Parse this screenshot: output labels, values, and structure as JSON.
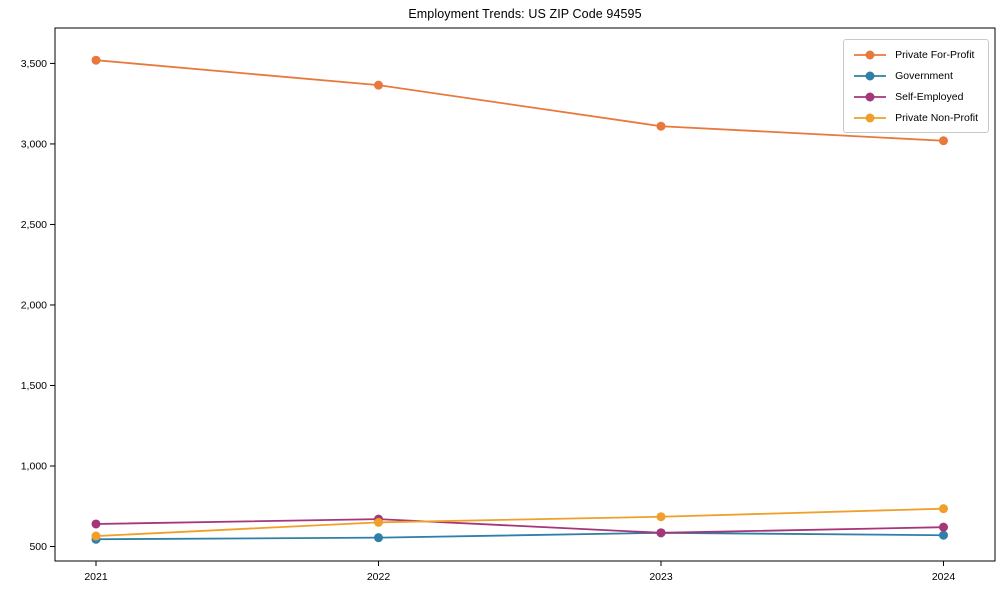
{
  "title": "Employment Trends: US ZIP Code 94595",
  "chart_data": {
    "type": "line",
    "title": "Employment Trends: US ZIP Code 94595",
    "xlabel": "",
    "ylabel": "",
    "x": [
      2021,
      2022,
      2023,
      2024
    ],
    "xtick_labels": [
      "2021",
      "2022",
      "2023",
      "2024"
    ],
    "yticks": [
      500,
      1000,
      1500,
      2000,
      2500,
      3000,
      3500
    ],
    "ytick_labels": [
      "500",
      "1,000",
      "1,500",
      "2,000",
      "2,500",
      "3,000",
      "3,500"
    ],
    "ylim": [
      410,
      3720
    ],
    "grid": false,
    "legend_position": "upper right",
    "series": [
      {
        "name": "Private For-Profit",
        "color": "#e8793d",
        "values": [
          3520,
          3365,
          3110,
          3020
        ]
      },
      {
        "name": "Government",
        "color": "#2f7fa6",
        "values": [
          545,
          555,
          585,
          570
        ]
      },
      {
        "name": "Self-Employed",
        "color": "#a53778",
        "values": [
          640,
          670,
          585,
          620
        ]
      },
      {
        "name": "Private Non-Profit",
        "color": "#f0a02a",
        "values": [
          565,
          650,
          685,
          735
        ]
      }
    ],
    "axis_color": "#000000",
    "tick_font_px": 10.5
  }
}
